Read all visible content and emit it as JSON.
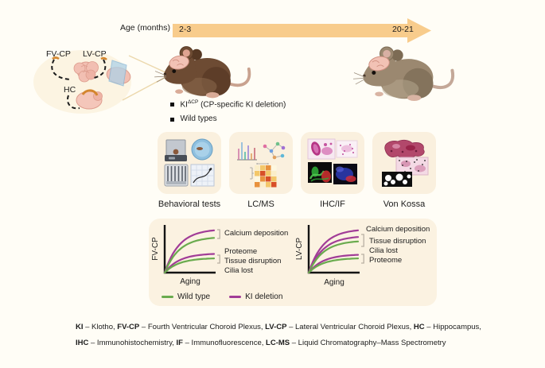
{
  "timeline": {
    "label": "Age (months)",
    "start": "2-3",
    "end": "20-21"
  },
  "callout": {
    "fv_cp": "FV-CP",
    "lv_cp": "LV-CP",
    "hc": "HC"
  },
  "cohort": {
    "item1_prefix": "KI",
    "item1_sup": "ΔCP",
    "item1_rest": " (CP-specific KI deletion)",
    "item2": "Wild types"
  },
  "methods": [
    {
      "label": "Behavioral tests"
    },
    {
      "label": "LC/MS"
    },
    {
      "label": "IHC/IF"
    },
    {
      "label": "Von Kossa"
    }
  ],
  "chart_data": [
    {
      "type": "line",
      "title": "FV-CP changes with aging",
      "xlabel": "Aging",
      "ylabel": "FV-CP",
      "x_range": [
        0,
        1
      ],
      "y_range": [
        0,
        1
      ],
      "grid": false,
      "series": [
        {
          "name": "KI deletion – Calcium deposition",
          "color": "#a13c97",
          "plateau": 0.95
        },
        {
          "name": "Wild type – Calcium deposition",
          "color": "#6aab4e",
          "plateau": 0.78
        },
        {
          "name": "KI deletion – Proteome / Tissue disruption / Cilia lost",
          "color": "#a13c97",
          "plateau": 0.42
        },
        {
          "name": "Wild type – Proteome / Tissue disruption / Cilia lost",
          "color": "#6aab4e",
          "plateau": 0.32
        }
      ],
      "annotations": [
        {
          "lines": [
            "Calcium deposition"
          ]
        },
        {
          "lines": [
            "Proteome",
            "Tissue disruption",
            "Cilia lost"
          ]
        }
      ]
    },
    {
      "type": "line",
      "title": "LV-CP changes with aging",
      "xlabel": "Aging",
      "ylabel": "LV-CP",
      "x_range": [
        0,
        1
      ],
      "y_range": [
        0,
        1
      ],
      "grid": false,
      "series": [
        {
          "name": "KI deletion – Calcium deposition",
          "color": "#a13c97",
          "plateau": 0.95
        },
        {
          "name": "KI deletion – Tissue disruption / Cilia lost",
          "color": "#a13c97",
          "plateau": 0.8
        },
        {
          "name": "Wild type – Tissue disruption / Cilia lost",
          "color": "#6aab4e",
          "plateau": 0.7
        },
        {
          "name": "KI deletion – Proteome",
          "color": "#a13c97",
          "plateau": 0.4
        },
        {
          "name": "Wild type – Proteome",
          "color": "#6aab4e",
          "plateau": 0.32
        }
      ],
      "annotations": [
        {
          "lines": [
            "Calcium deposition"
          ]
        },
        {
          "lines": [
            "Tissue disruption",
            "Cilia lost"
          ]
        },
        {
          "lines": [
            "Proteome"
          ]
        }
      ]
    }
  ],
  "chart_legend": {
    "wild_type": "Wild type",
    "ki_deletion": "KI deletion"
  },
  "abbreviations": {
    "line1": [
      {
        "t": "KI",
        "b": true
      },
      {
        "t": " – Klotho, "
      },
      {
        "t": "FV-CP",
        "b": true
      },
      {
        "t": " – Fourth Ventricular Choroid Plexus, "
      },
      {
        "t": "LV-CP",
        "b": true
      },
      {
        "t": " – Lateral Ventricular Choroid Plexus, "
      },
      {
        "t": "HC",
        "b": true
      },
      {
        "t": " – Hippocampus,"
      }
    ],
    "line2": [
      {
        "t": "IHC",
        "b": true
      },
      {
        "t": " – Immunohistochemistry, "
      },
      {
        "t": "IF",
        "b": true
      },
      {
        "t": " – Immunofluorescence, "
      },
      {
        "t": "LC-MS",
        "b": true
      },
      {
        "t": " – Liquid Chromatography–Mass Spectrometry"
      }
    ]
  },
  "colors": {
    "background": "#fffdf6",
    "panel_cream": "#faf0de",
    "charts_panel_cream": "#fbf2e1",
    "arrow_orange": "#f8cc8c",
    "wild_type_green": "#6aab4e",
    "ki_deletion_purple": "#a13c97"
  }
}
